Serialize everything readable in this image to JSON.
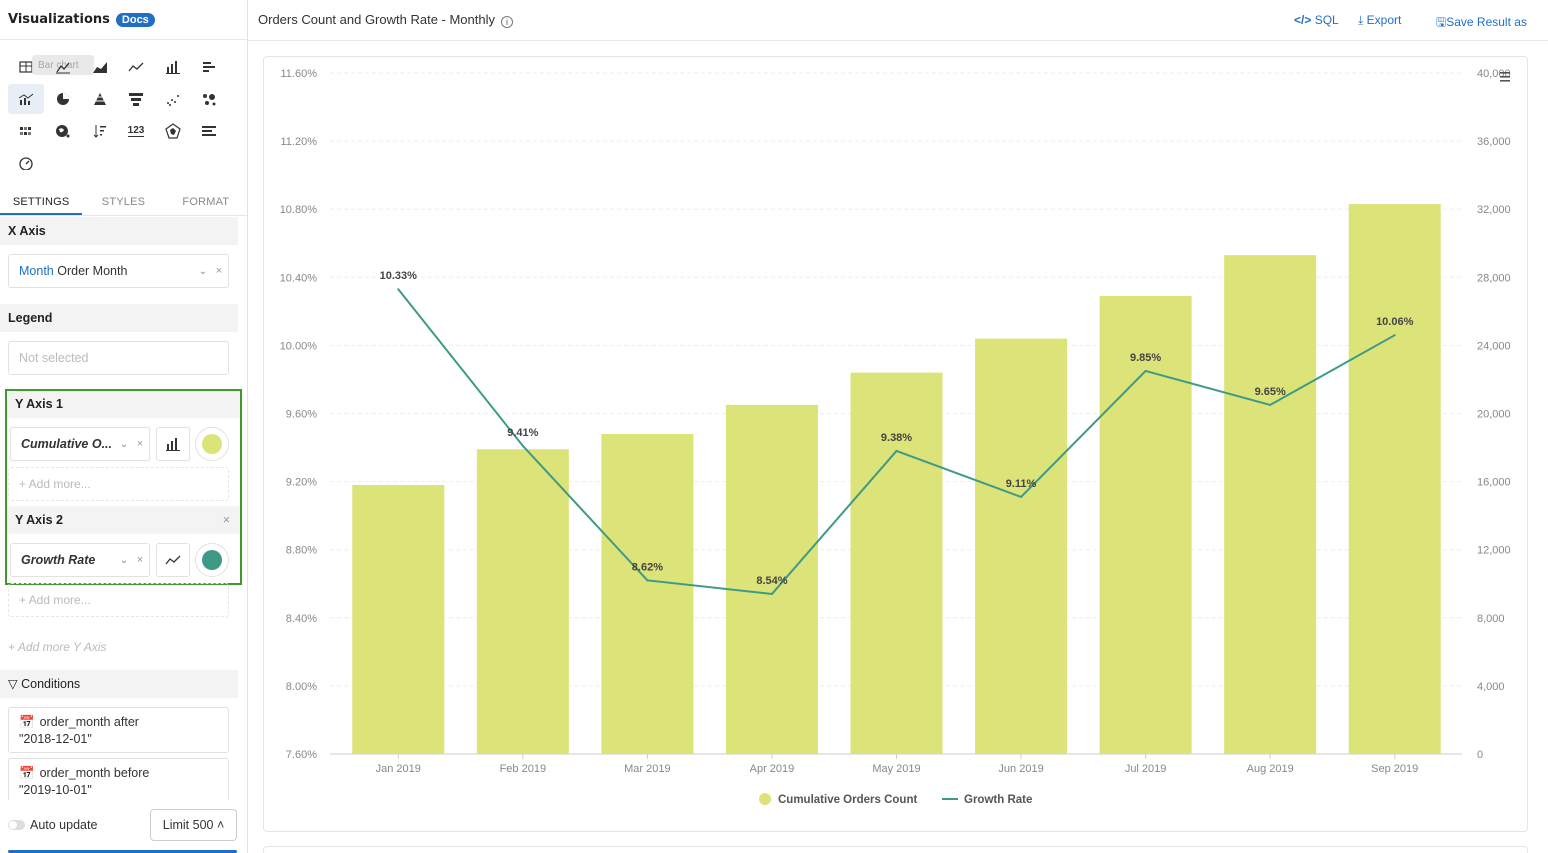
{
  "left_panel": {
    "title": "Visualizations",
    "docs_badge": "Docs",
    "tooltip_ghost": "Bar chart",
    "viz_icons": [
      "table-icon",
      "bar-chart-icon",
      "area-chart-icon",
      "line-chart-icon",
      "column-chart-icon",
      "horizontal-bar-icon",
      "combo-chart-icon",
      "pie-chart-icon",
      "pyramid-icon",
      "funnel-icon",
      "scatter-icon",
      "bubble-icon",
      "heatmap-icon",
      "geo-map-icon",
      "sorted-list-icon",
      "number-icon",
      "radar-icon",
      "progress-bar-icon",
      "gauge-icon"
    ],
    "tabs": [
      "SETTINGS",
      "STYLES",
      "FORMAT"
    ],
    "x_axis": {
      "heading": "X Axis",
      "field_prefix": "Month",
      "field_value": "Order Month"
    },
    "legend": {
      "heading": "Legend",
      "placeholder": "Not selected"
    },
    "y_axis_1": {
      "heading": "Y Axis 1",
      "field_value": "Cumulative O...",
      "color": "#dce378",
      "add_more": "+ Add more..."
    },
    "y_axis_2": {
      "heading": "Y Axis 2",
      "field_value": "Growth Rate",
      "color": "#3e9a86",
      "add_more": "+ Add more..."
    },
    "add_more_y_axis": "+ Add more Y Axis",
    "conditions": {
      "heading": "Conditions",
      "items": [
        {
          "line1": "order_month after",
          "line2": "\"2018-12-01\""
        },
        {
          "line1": "order_month before",
          "line2": "\"2019-10-01\""
        }
      ]
    },
    "auto_update": "Auto update",
    "limit": "Limit 500 ˄"
  },
  "topbar": {
    "title": "Orders Count and Growth Rate - Monthly",
    "sql": "SQL",
    "export": "Export",
    "save": "Save Result as"
  },
  "chart_data": {
    "type": "bar",
    "categories": [
      "Jan 2019",
      "Feb 2019",
      "Mar 2019",
      "Apr 2019",
      "May 2019",
      "Jun 2019",
      "Jul 2019",
      "Aug 2019",
      "Sep 2019"
    ],
    "series": [
      {
        "name": "Cumulative Orders Count",
        "type": "bar",
        "axis": "right",
        "color": "#dce378",
        "values": [
          15800,
          17900,
          18800,
          20500,
          22400,
          24400,
          26900,
          29300,
          32300
        ]
      },
      {
        "name": "Growth Rate",
        "type": "line",
        "axis": "left",
        "color": "#3e9a86",
        "values": [
          10.33,
          9.41,
          8.62,
          8.54,
          9.38,
          9.11,
          9.85,
          9.65,
          10.06
        ],
        "labels": [
          "10.33%",
          "9.41%",
          "8.62%",
          "8.54%",
          "9.38%",
          "9.11%",
          "9.85%",
          "9.65%",
          "10.06%"
        ]
      }
    ],
    "left_axis": {
      "ticks": [
        "11.60%",
        "11.20%",
        "10.80%",
        "10.40%",
        "10.00%",
        "9.60%",
        "9.20%",
        "8.80%",
        "8.40%",
        "8.00%",
        "7.60%"
      ],
      "ylim": [
        7.6,
        11.6
      ]
    },
    "right_axis": {
      "ticks": [
        "40,000",
        "36,000",
        "32,000",
        "28,000",
        "24,000",
        "20,000",
        "16,000",
        "12,000",
        "8,000",
        "4,000",
        "0"
      ],
      "ylim": [
        0,
        40000
      ]
    },
    "legend_placement": "bottom-center",
    "grid": true
  }
}
